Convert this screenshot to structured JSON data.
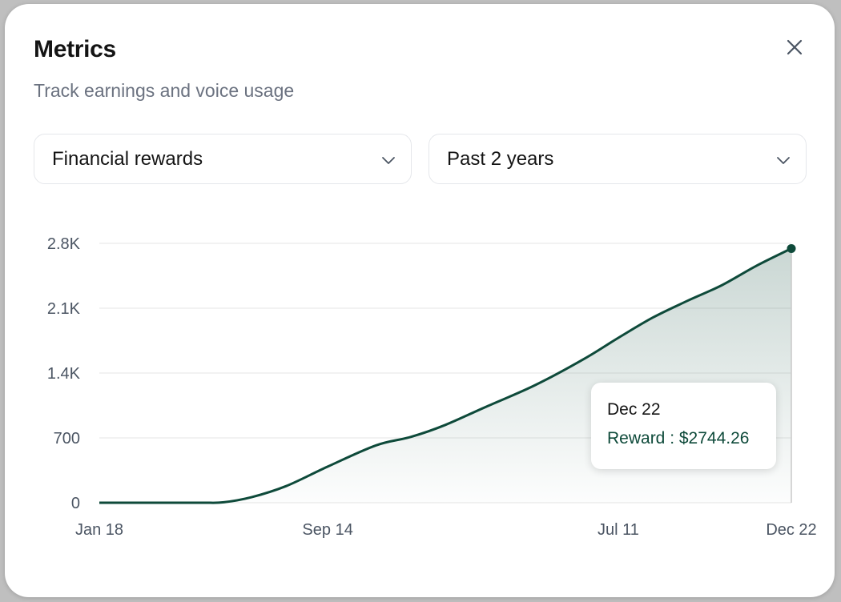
{
  "header": {
    "title": "Metrics",
    "subtitle": "Track earnings and voice usage"
  },
  "icons": {
    "close": "close-icon",
    "dropdown": "chevron-down-icon"
  },
  "filters": {
    "metric": {
      "selected": "Financial rewards"
    },
    "range": {
      "selected": "Past 2 years"
    }
  },
  "colors": {
    "line": "#0e4a3a",
    "fill": "#0e4a3a",
    "grid": "#ebebeb",
    "axis_text": "#4b5563"
  },
  "tooltip": {
    "date": "Dec 22",
    "value_text": "Reward : $2744.26"
  },
  "chart_data": {
    "type": "area",
    "title": "",
    "xlabel": "",
    "ylabel": "",
    "ylim": [
      0,
      2800
    ],
    "yticks": [
      0,
      700,
      1400,
      2100,
      2800
    ],
    "ytick_labels": [
      "0",
      "700",
      "1.4K",
      "2.1K",
      "2.8K"
    ],
    "xlim": [
      0,
      100
    ],
    "xticks": [
      0,
      33,
      75,
      100
    ],
    "xtick_labels": [
      "Jan 18",
      "Sep 14",
      "Jul 11",
      "Dec 22"
    ],
    "series": [
      {
        "name": "Reward",
        "x": [
          0,
          10,
          15,
          18,
          22,
          27,
          33,
          40,
          45,
          50,
          56,
          63,
          70,
          75,
          80,
          85,
          90,
          95,
          100
        ],
        "y": [
          0,
          0,
          0,
          5,
          60,
          180,
          390,
          620,
          710,
          840,
          1040,
          1270,
          1550,
          1780,
          2000,
          2180,
          2350,
          2560,
          2744.26
        ]
      }
    ],
    "highlight": {
      "x": 100,
      "y": 2744.26,
      "label": "Dec 22"
    }
  }
}
